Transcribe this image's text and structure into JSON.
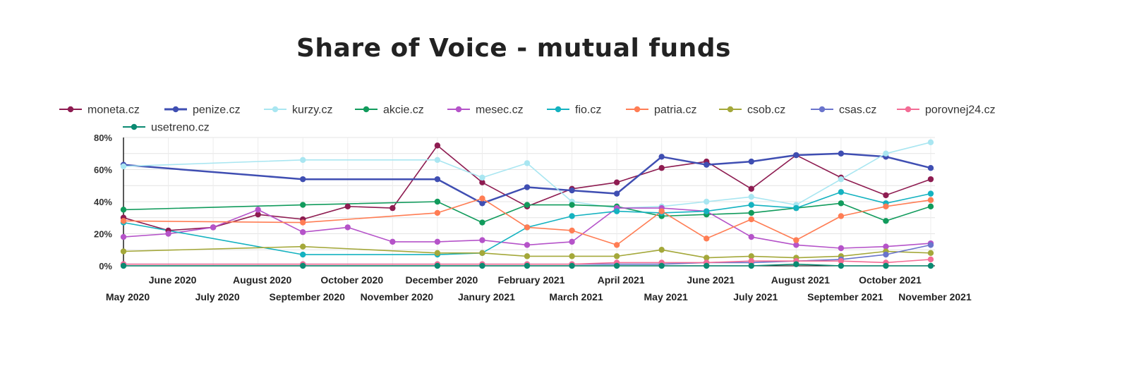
{
  "chart_data": {
    "type": "line",
    "title": "Share of Voice - mutual funds",
    "xlabel": "",
    "ylabel": "",
    "ylim": [
      0,
      80
    ],
    "yticks": [
      "0%",
      "20%",
      "40%",
      "60%",
      "80%"
    ],
    "grid": true,
    "legend_position": "top",
    "x": [
      "May 2020",
      "June 2020",
      "July 2020",
      "August 2020",
      "September 2020",
      "October 2020",
      "November 2020",
      "December 2020",
      "Janury 2021",
      "February 2021",
      "March 2021",
      "April 2021",
      "May 2021",
      "June 2021",
      "July 2021",
      "August 2021",
      "September 2021",
      "October 2021",
      "November 2021"
    ],
    "series": [
      {
        "name": "moneta.cz",
        "color": "#8e1c51",
        "values": [
          30,
          22,
          24,
          32,
          29,
          37,
          36,
          75,
          52,
          37,
          48,
          52,
          61,
          65,
          48,
          69,
          55,
          44,
          54
        ]
      },
      {
        "name": "penize.cz",
        "color": "#3f4eb2",
        "values": [
          63,
          null,
          null,
          null,
          54,
          null,
          null,
          54,
          39,
          49,
          47,
          45,
          68,
          63,
          65,
          69,
          70,
          68,
          61
        ]
      },
      {
        "name": "kurzy.cz",
        "color": "#a9e6f1",
        "values": [
          62,
          null,
          null,
          null,
          66,
          null,
          null,
          66,
          55,
          64,
          40,
          36,
          37,
          40,
          43,
          38,
          54,
          70,
          77
        ]
      },
      {
        "name": "akcie.cz",
        "color": "#119b5c",
        "values": [
          35,
          null,
          null,
          null,
          38,
          null,
          null,
          40,
          27,
          38,
          38,
          37,
          31,
          32,
          33,
          36,
          39,
          28,
          37
        ]
      },
      {
        "name": "mesec.cz",
        "color": "#b553c9",
        "values": [
          18,
          20,
          24,
          35,
          21,
          24,
          15,
          15,
          16,
          13,
          15,
          36,
          36,
          34,
          18,
          13,
          11,
          12,
          14
        ]
      },
      {
        "name": "fio.cz",
        "color": "#14b2c0",
        "values": [
          27,
          null,
          null,
          null,
          7,
          null,
          null,
          7,
          8,
          24,
          31,
          34,
          33,
          34,
          38,
          36,
          46,
          39,
          45
        ]
      },
      {
        "name": "patria.cz",
        "color": "#ff7d54",
        "values": [
          28,
          null,
          null,
          null,
          27,
          null,
          null,
          33,
          42,
          24,
          22,
          13,
          34,
          17,
          29,
          16,
          31,
          37,
          41
        ]
      },
      {
        "name": "csob.cz",
        "color": "#a4a83a",
        "values": [
          9,
          null,
          null,
          null,
          12,
          null,
          null,
          8,
          8,
          6,
          6,
          6,
          10,
          5,
          6,
          5,
          6,
          9,
          8
        ]
      },
      {
        "name": "csas.cz",
        "color": "#6a74cc",
        "values": [
          1,
          null,
          null,
          null,
          1,
          null,
          null,
          1,
          1,
          1,
          1,
          1,
          1,
          2,
          2,
          3,
          4,
          7,
          13
        ]
      },
      {
        "name": "porovnej24.cz",
        "color": "#f36c95",
        "values": [
          1,
          null,
          null,
          null,
          1,
          null,
          null,
          1,
          1,
          1,
          1,
          2,
          2,
          2,
          3,
          3,
          3,
          2,
          4
        ]
      },
      {
        "name": "usetreno.cz",
        "color": "#0b8a72",
        "values": [
          0,
          null,
          null,
          null,
          0,
          null,
          null,
          0,
          0,
          0,
          0,
          0,
          0,
          0,
          0,
          1,
          0,
          0,
          0
        ]
      }
    ]
  }
}
